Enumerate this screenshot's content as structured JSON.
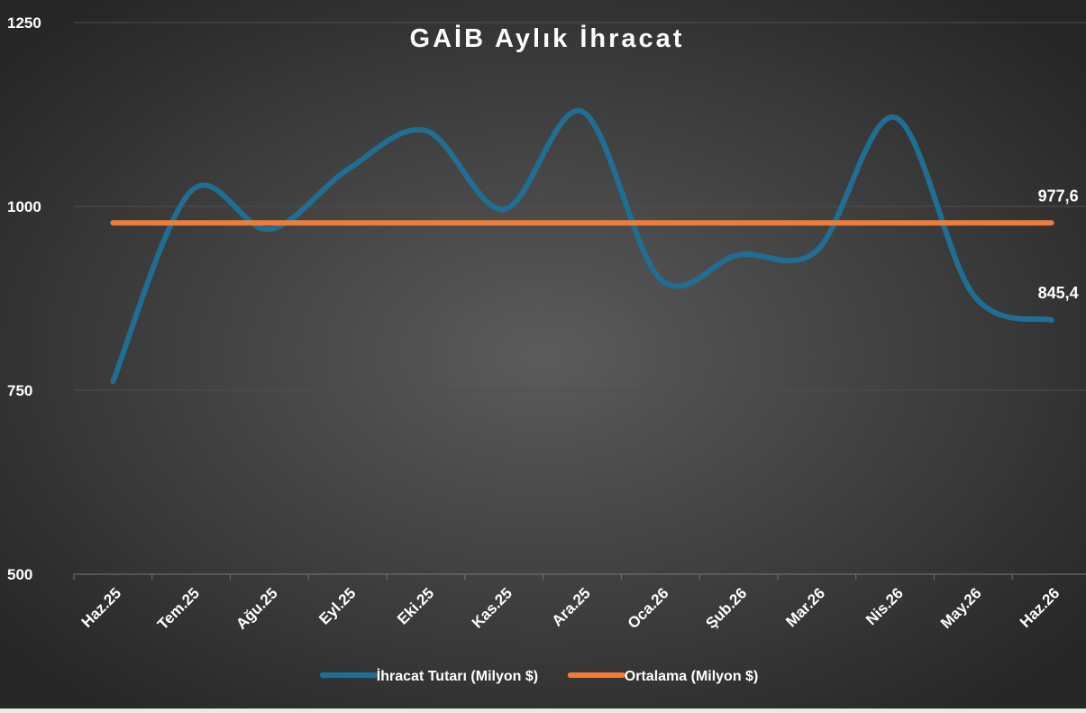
{
  "chart_data": {
    "type": "line",
    "title": "GAİB Aylık İhracat",
    "categories": [
      "Haz.25",
      "Tem.25",
      "Ağu.25",
      "Eyl.25",
      "Eki.25",
      "Kas.25",
      "Ara.25",
      "Oca.26",
      "Şub.26",
      "Mar.26",
      "Nis.26",
      "May.26",
      "Haz.26"
    ],
    "series": [
      {
        "name": "İhracat Tutarı (Milyon $)",
        "color": "#1f6f94",
        "values": [
          762,
          1021,
          969,
          1050,
          1103,
          996,
          1129,
          901,
          934,
          940,
          1121,
          880,
          845.4
        ],
        "value_labels": [
          null,
          null,
          null,
          null,
          null,
          null,
          null,
          null,
          null,
          null,
          null,
          null,
          "845,4"
        ]
      },
      {
        "name": "Ortalama (Milyon $)",
        "color": "#f07c3a",
        "values": [
          977.6,
          977.6,
          977.6,
          977.6,
          977.6,
          977.6,
          977.6,
          977.6,
          977.6,
          977.6,
          977.6,
          977.6,
          977.6
        ],
        "value_labels": [
          null,
          null,
          null,
          null,
          null,
          null,
          null,
          null,
          null,
          null,
          null,
          null,
          "977,6"
        ]
      }
    ],
    "ylim": [
      500,
      1250
    ],
    "yticks": [
      500,
      750,
      1000,
      1250
    ],
    "grid": true,
    "smooth": true,
    "legend": "bottom"
  }
}
